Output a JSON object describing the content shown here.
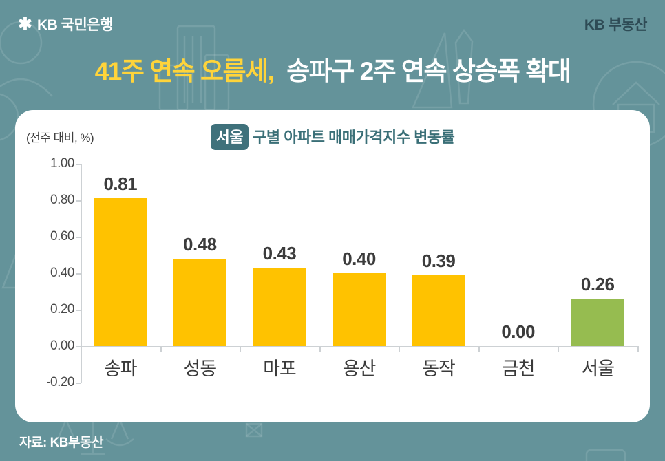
{
  "header": {
    "logo_symbol": "✱",
    "logo_text": "KB 국민은행",
    "brand": "KB 부동산",
    "title_highlight": "41주 연속 오름세,",
    "title_rest": "송파구 2주 연속 상승폭 확대"
  },
  "chart": {
    "unit_label": "(전주 대비, %)",
    "title_badge": "서울",
    "title_rest": "구별 아파트 매매가격지수 변동률",
    "source": "자료: KB부동산"
  },
  "chart_data": {
    "type": "bar",
    "title": "서울 구별 아파트 매매가격지수 변동률",
    "unit_label": "(전주 대비, %)",
    "categories": [
      "송파",
      "성동",
      "마포",
      "용산",
      "동작",
      "금천",
      "서울"
    ],
    "values": [
      0.81,
      0.48,
      0.43,
      0.4,
      0.39,
      0.0,
      0.26
    ],
    "value_labels": [
      "0.81",
      "0.48",
      "0.43",
      "0.40",
      "0.39",
      "0.00",
      "0.26"
    ],
    "bar_colors": [
      "#FFC200",
      "#FFC200",
      "#FFC200",
      "#FFC200",
      "#FFC200",
      "#FFC200",
      "#96BC50"
    ],
    "highlight_category": "서울",
    "ylim": [
      -0.2,
      1.0
    ],
    "ytick_labels": [
      "1.00",
      "0.80",
      "0.60",
      "0.40",
      "0.20",
      "0.00",
      "-0.20"
    ],
    "grid": false,
    "legend_position": "none",
    "source": "자료: KB부동산"
  },
  "colors": {
    "background_teal": "#64939A",
    "bar_yellow": "#FFC200",
    "bar_green": "#96BC50",
    "title_yellow": "#FFD43A",
    "badge_teal": "#3F717B",
    "chart_title_teal": "#3A6F77",
    "brand_dark": "#2E4B55",
    "axis_gray": "#CDD1D4",
    "label_dark": "#3C3C3C"
  }
}
